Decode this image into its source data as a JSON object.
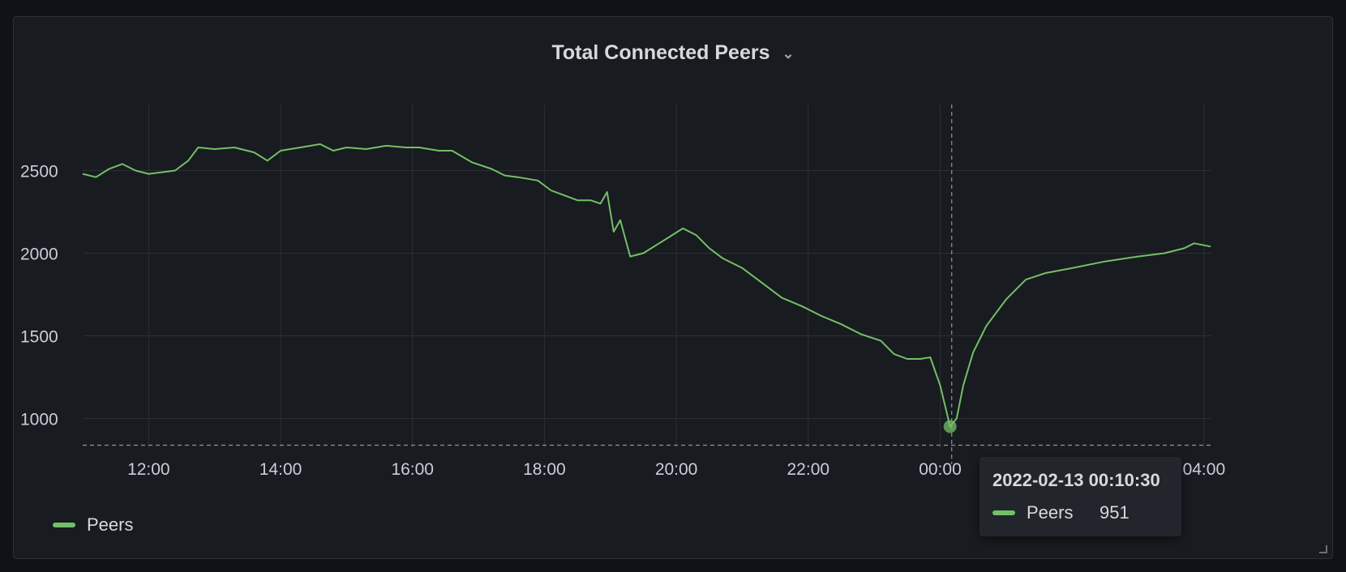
{
  "panel": {
    "title": "Total Connected Peers",
    "menu_icon": "chevron-down-icon"
  },
  "colors": {
    "background": "#181b1f",
    "grid": "#2c2f34",
    "series": "#73bf69",
    "axis_text": "#ccccdc",
    "crosshair": "#8e9299"
  },
  "tooltip": {
    "time": "2022-02-13 00:10:30",
    "series_name": "Peers",
    "value": "951"
  },
  "chart_data": {
    "type": "line",
    "x_tick_labels": [
      "12:00",
      "14:00",
      "16:00",
      "18:00",
      "20:00",
      "22:00",
      "00:00",
      "04:00"
    ],
    "x_tick_hours": [
      12,
      14,
      16,
      18,
      20,
      22,
      24,
      28
    ],
    "x_range_hours": [
      11,
      28.1
    ],
    "y_tick_labels": [
      "1000",
      "1500",
      "2000",
      "2500"
    ],
    "y_ticks": [
      1000,
      1500,
      2000,
      2500
    ],
    "ylim": [
      870,
      2880
    ],
    "threshold": 838,
    "crosshair_hour": 24.175,
    "series": [
      {
        "name": "Peers",
        "points": [
          [
            11.0,
            2480
          ],
          [
            11.2,
            2460
          ],
          [
            11.4,
            2510
          ],
          [
            11.6,
            2540
          ],
          [
            11.8,
            2500
          ],
          [
            12.0,
            2480
          ],
          [
            12.2,
            2490
          ],
          [
            12.4,
            2500
          ],
          [
            12.6,
            2560
          ],
          [
            12.75,
            2640
          ],
          [
            13.0,
            2630
          ],
          [
            13.3,
            2640
          ],
          [
            13.6,
            2610
          ],
          [
            13.8,
            2560
          ],
          [
            14.0,
            2620
          ],
          [
            14.3,
            2640
          ],
          [
            14.6,
            2660
          ],
          [
            14.8,
            2620
          ],
          [
            15.0,
            2640
          ],
          [
            15.3,
            2630
          ],
          [
            15.6,
            2650
          ],
          [
            15.9,
            2640
          ],
          [
            16.1,
            2640
          ],
          [
            16.4,
            2620
          ],
          [
            16.6,
            2620
          ],
          [
            16.9,
            2550
          ],
          [
            17.2,
            2510
          ],
          [
            17.4,
            2470
          ],
          [
            17.6,
            2460
          ],
          [
            17.9,
            2440
          ],
          [
            18.1,
            2380
          ],
          [
            18.3,
            2350
          ],
          [
            18.5,
            2320
          ],
          [
            18.7,
            2320
          ],
          [
            18.85,
            2300
          ],
          [
            18.95,
            2370
          ],
          [
            19.05,
            2130
          ],
          [
            19.15,
            2200
          ],
          [
            19.3,
            1980
          ],
          [
            19.5,
            2000
          ],
          [
            19.7,
            2050
          ],
          [
            19.9,
            2100
          ],
          [
            20.1,
            2150
          ],
          [
            20.3,
            2110
          ],
          [
            20.5,
            2030
          ],
          [
            20.7,
            1970
          ],
          [
            21.0,
            1910
          ],
          [
            21.3,
            1820
          ],
          [
            21.6,
            1730
          ],
          [
            21.9,
            1680
          ],
          [
            22.2,
            1620
          ],
          [
            22.5,
            1570
          ],
          [
            22.8,
            1510
          ],
          [
            23.1,
            1470
          ],
          [
            23.3,
            1390
          ],
          [
            23.5,
            1360
          ],
          [
            23.7,
            1360
          ],
          [
            23.85,
            1370
          ],
          [
            24.0,
            1200
          ],
          [
            24.15,
            951
          ],
          [
            24.25,
            1000
          ],
          [
            24.35,
            1200
          ],
          [
            24.5,
            1400
          ],
          [
            24.7,
            1560
          ],
          [
            25.0,
            1720
          ],
          [
            25.3,
            1840
          ],
          [
            25.6,
            1880
          ],
          [
            26.0,
            1910
          ],
          [
            26.5,
            1950
          ],
          [
            27.0,
            1980
          ],
          [
            27.4,
            2000
          ],
          [
            27.7,
            2030
          ],
          [
            27.85,
            2060
          ],
          [
            28.1,
            2040
          ]
        ]
      }
    ]
  }
}
